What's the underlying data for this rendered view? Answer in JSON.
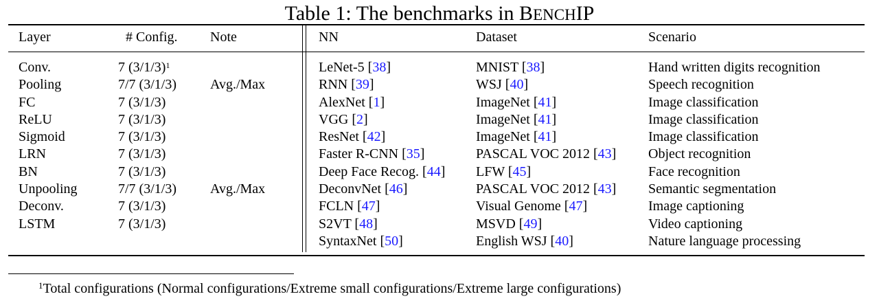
{
  "caption": {
    "prefix": "Table 1: The benchmarks in ",
    "name_b": "B",
    "name_ench": "ENCH",
    "name_ip": "IP"
  },
  "headers": {
    "layer": "Layer",
    "config": "# Config.",
    "note": "Note",
    "nn": "NN",
    "dataset": "Dataset",
    "scenario": "Scenario"
  },
  "layers": [
    {
      "layer": "Conv.",
      "config": "7 (3/1/3)",
      "sup": "1",
      "note": ""
    },
    {
      "layer": "Pooling",
      "config": "7/7 (3/1/3)",
      "sup": "",
      "note": "Avg./Max"
    },
    {
      "layer": "FC",
      "config": "7 (3/1/3)",
      "sup": "",
      "note": ""
    },
    {
      "layer": "ReLU",
      "config": "7 (3/1/3)",
      "sup": "",
      "note": ""
    },
    {
      "layer": "Sigmoid",
      "config": "7 (3/1/3)",
      "sup": "",
      "note": ""
    },
    {
      "layer": "LRN",
      "config": "7 (3/1/3)",
      "sup": "",
      "note": ""
    },
    {
      "layer": "BN",
      "config": "7 (3/1/3)",
      "sup": "",
      "note": ""
    },
    {
      "layer": "Unpooling",
      "config": "7/7 (3/1/3)",
      "sup": "",
      "note": "Avg./Max"
    },
    {
      "layer": "Deconv.",
      "config": "7 (3/1/3)",
      "sup": "",
      "note": ""
    },
    {
      "layer": "LSTM",
      "config": "7 (3/1/3)",
      "sup": "",
      "note": ""
    }
  ],
  "networks": [
    {
      "nn": "LeNet-5 ",
      "nn_ref": "38",
      "dataset": "MNIST ",
      "dataset_ref": "38",
      "scenario": "Hand written digits recognition"
    },
    {
      "nn": "RNN ",
      "nn_ref": "39",
      "dataset": "WSJ ",
      "dataset_ref": "40",
      "scenario": "Speech recognition"
    },
    {
      "nn": "AlexNet ",
      "nn_ref": "1",
      "dataset": "ImageNet ",
      "dataset_ref": "41",
      "scenario": "Image classification"
    },
    {
      "nn": "VGG ",
      "nn_ref": "2",
      "dataset": "ImageNet ",
      "dataset_ref": "41",
      "scenario": "Image classification"
    },
    {
      "nn": "ResNet ",
      "nn_ref": "42",
      "dataset": "ImageNet ",
      "dataset_ref": "41",
      "scenario": "Image classification"
    },
    {
      "nn": "Faster R-CNN ",
      "nn_ref": "35",
      "dataset": "PASCAL VOC 2012 ",
      "dataset_ref": "43",
      "scenario": "Object recognition"
    },
    {
      "nn": "Deep Face Recog. ",
      "nn_ref": "44",
      "dataset": "LFW ",
      "dataset_ref": "45",
      "scenario": "Face recognition"
    },
    {
      "nn": "DeconvNet ",
      "nn_ref": "46",
      "dataset": "PASCAL VOC 2012 ",
      "dataset_ref": "43",
      "scenario": "Semantic segmentation"
    },
    {
      "nn": "FCLN ",
      "nn_ref": "47",
      "dataset": "Visual Genome ",
      "dataset_ref": "47",
      "scenario": "Image captioning"
    },
    {
      "nn": "S2VT ",
      "nn_ref": "48",
      "dataset": "MSVD ",
      "dataset_ref": "49",
      "scenario": "Video captioning"
    },
    {
      "nn": "SyntaxNet ",
      "nn_ref": "50",
      "dataset": "English WSJ ",
      "dataset_ref": "40",
      "scenario": "Nature language processing"
    }
  ],
  "footnote": {
    "mark": "1",
    "text": "Total configurations (Normal configurations/Extreme small configurations/Extreme large configurations)"
  }
}
